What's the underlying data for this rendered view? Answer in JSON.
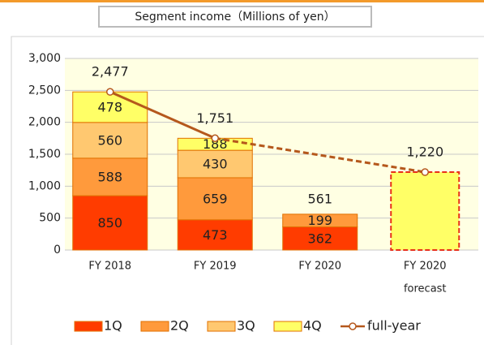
{
  "chart_data": {
    "type": "bar",
    "stacked": true,
    "title": "Segment income（Millions of yen）",
    "categories": [
      "FY 2018",
      "FY 2019",
      "FY 2020",
      [
        "FY 2020",
        "forecast"
      ]
    ],
    "series": [
      {
        "name": "1Q",
        "color": "#ff3c00",
        "label_color": "#ffffff",
        "values": [
          850,
          473,
          362,
          null
        ]
      },
      {
        "name": "2Q",
        "color": "#ff9a3c",
        "label_color": "#ffffff",
        "values": [
          588,
          659,
          199,
          null
        ]
      },
      {
        "name": "3Q",
        "color": "#ffc870",
        "label_color": "#c00000",
        "values": [
          560,
          430,
          null,
          null
        ]
      },
      {
        "name": "4Q",
        "color": "#ffff66",
        "label_color": "#c00000",
        "values": [
          478,
          188,
          null,
          null
        ]
      },
      {
        "name": "full-year",
        "type": "line",
        "color": "#b5581c",
        "label_color": "#c00000",
        "values": [
          2477,
          1751,
          null,
          1220
        ],
        "value_labels": [
          "2,477",
          "1,751",
          null,
          "1,220"
        ],
        "dashed_from": 1
      }
    ],
    "annotations": [
      {
        "value": 561,
        "category": 2
      }
    ],
    "ylim": [
      0,
      3000
    ],
    "yticks": [
      0,
      500,
      {
        "value": 1000,
        "label": "1,000"
      },
      {
        "value": 1500,
        "label": "1,500"
      },
      {
        "value": 2000,
        "label": "2,000"
      },
      {
        "value": 2500,
        "label": "2,500"
      },
      {
        "value": 3000,
        "label": "3,000"
      }
    ],
    "grid": true,
    "legend": "bottom"
  }
}
